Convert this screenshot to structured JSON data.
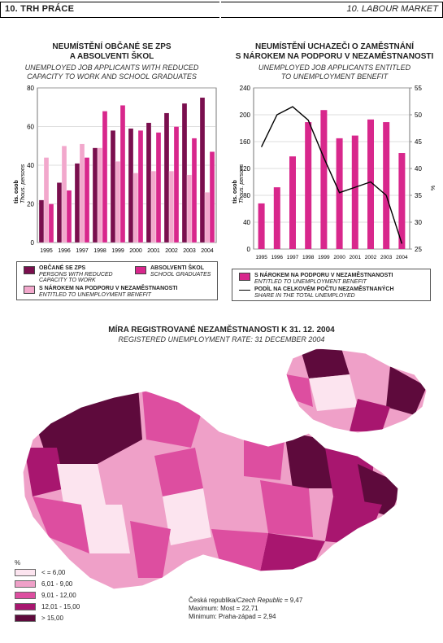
{
  "header": {
    "left": "10. TRH PRÁCE",
    "right": "10. LABOUR MARKET"
  },
  "chart_left": {
    "title_cz_1": "NEUMÍSTĚNÍ OBČANÉ SE ZPS",
    "title_cz_2": "A ABSOLVENTI ŠKOL",
    "title_en_1": "UNEMPLOYED JOB APPLICANTS WITH REDUCED",
    "title_en_2": "CAPACITY TO WORK AND SCHOOL GRADUATES",
    "ylabel_cz": "tis. osob",
    "ylabel_en": "Thous. persons",
    "legend": {
      "zps_cz": "OBČANÉ SE ZPS",
      "zps_en_1": "PERSONS WITH REDUCED",
      "zps_en_2": "CAPACITY TO WORK",
      "abs_cz": "ABSOLVENTI ŠKOL",
      "abs_en": "SCHOOL GRADUATES",
      "nar_cz": "S NÁROKEM NA PODPORU V NEZAMĚSTNANOSTI",
      "nar_en": "ENTITLED TO UNEMPLOYMENT BENEFIT"
    }
  },
  "chart_right": {
    "title_cz_1": "NEUMÍSTĚNÍ UCHAZEČI O ZAMĚSTNÁNÍ",
    "title_cz_2": "S NÁROKEM NA PODPORU V NEZAMĚSTNANOSTI",
    "title_en_1": "UNEMPLOYED JOB APPLICANTS ENTITLED",
    "title_en_2": "TO UNEMPLOYMENT BENEFIT",
    "ylabel_cz": "tis. osob",
    "ylabel_en": "Thous. persons",
    "y2label": "%",
    "legend": {
      "bar_cz": "S NÁROKEM NA PODPORU V NEZAMĚSTNANOSTI",
      "bar_en": "ENTITLED TO UNEMPLOYMENT BENEFIT",
      "line_cz": "PODÍL NA CELKOVÉM POČTU NEZAMĚSTNANÝCH",
      "line_en": "SHARE IN THE TOTAL UNEMPLOYED"
    }
  },
  "map": {
    "title_cz": "MÍRA REGISTROVANÉ NEZAMĚSTNANOSTI K 31. 12. 2004",
    "title_en": "REGISTERED UNEMPLOYMENT RATE: 31 DECEMBER 2004",
    "legend_unit": "%",
    "classes": [
      {
        "label": "< = 6,00",
        "color": "#fce4ef"
      },
      {
        "label": "6,01 - 9,00",
        "color": "#efa0c8"
      },
      {
        "label": "9,01 - 12,00",
        "color": "#dd4ea0"
      },
      {
        "label": "12,01 - 15,00",
        "color": "#a8166f"
      },
      {
        "label": "> 15,00",
        "color": "#5e0a3c"
      }
    ],
    "stat_country": "Česká republika/",
    "stat_country_en": "Czech Republic",
    "stat_country_val": " = 9,47",
    "stat_max": "Maximum: Most = 22,71",
    "stat_min": "Minimum: Praha-západ = 2,94"
  },
  "colors": {
    "zps": "#7a0f4e",
    "abs": "#d8278c",
    "nar": "#f2a8cc"
  },
  "chart_data": [
    {
      "type": "bar",
      "categories": [
        "1995",
        "1996",
        "1997",
        "1998",
        "1999",
        "2000",
        "2001",
        "2002",
        "2003",
        "2004"
      ],
      "series": [
        {
          "name": "OBČANÉ SE ZPS",
          "values": [
            22,
            31,
            41,
            49,
            58,
            59,
            62,
            67,
            72,
            75
          ]
        },
        {
          "name": "S NÁROKEM NA PODPORU V NEZAMĚSTNANOSTI",
          "values": [
            44,
            50,
            51,
            49,
            42,
            36,
            37,
            37,
            35,
            26
          ]
        },
        {
          "name": "ABSOLVENTI ŠKOL",
          "values": [
            20,
            27,
            44,
            68,
            71,
            58,
            57,
            60,
            54,
            47
          ]
        }
      ],
      "ylim": [
        0,
        80
      ],
      "yticks": [
        0,
        20,
        40,
        60,
        80
      ]
    },
    {
      "type": "bar",
      "categories": [
        "1995",
        "1996",
        "1997",
        "1998",
        "1999",
        "2000",
        "2001",
        "2002",
        "2003",
        "2004"
      ],
      "series": [
        {
          "name": "S NÁROKEM NA PODPORU V NEZAMĚSTNANOSTI",
          "values": [
            68,
            92,
            138,
            189,
            207,
            165,
            169,
            193,
            189,
            143
          ]
        },
        {
          "name": "PODÍL NA CELKOVÉM POČTU NEZAMĚSTNANÝCH",
          "axis": "right",
          "values": [
            44,
            50,
            51.5,
            49,
            42,
            35.5,
            36.5,
            37.5,
            35,
            26
          ]
        }
      ],
      "ylim": [
        0,
        240
      ],
      "yticks": [
        0,
        40,
        80,
        120,
        160,
        200,
        240
      ],
      "y2lim": [
        25,
        55
      ],
      "y2ticks": [
        25,
        30,
        35,
        40,
        45,
        50,
        55
      ]
    }
  ]
}
